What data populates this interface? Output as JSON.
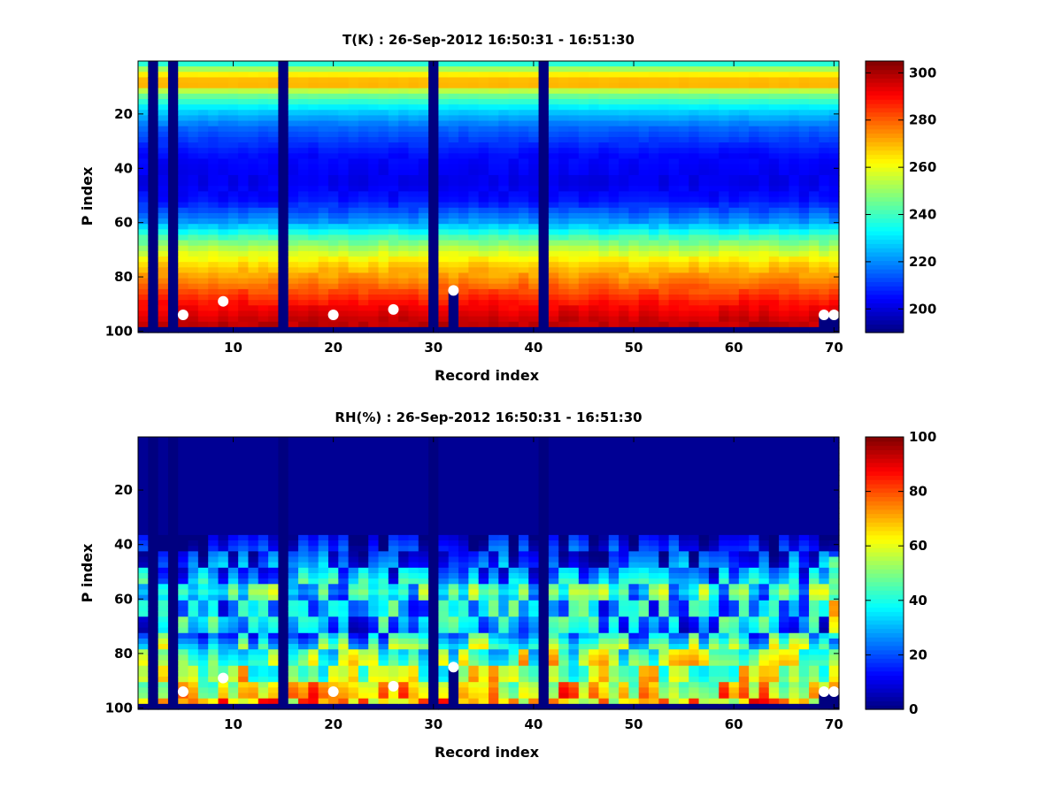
{
  "chart_data": [
    {
      "type": "heatmap",
      "title": "T(K) : 26-Sep-2012 16:50:31 - 16:51:30",
      "xlabel": "Record index",
      "ylabel": "P index",
      "xlim": [
        1,
        70
      ],
      "ylim": [
        100,
        1
      ],
      "y_reversed": true,
      "xticks": [
        10,
        20,
        30,
        40,
        50,
        60,
        70
      ],
      "yticks": [
        20,
        40,
        60,
        80,
        100
      ],
      "colormap": "jet",
      "clim": [
        190,
        305
      ],
      "colorbar_ticks": [
        200,
        220,
        240,
        260,
        280,
        300
      ],
      "missing_records": [
        2,
        4,
        15,
        30,
        41
      ],
      "partial_records": [
        {
          "record": 32,
          "start_p": 85
        },
        {
          "record": 69,
          "start_p": 94
        },
        {
          "record": 70,
          "start_p": 94
        }
      ],
      "bottom_fill_start_p": 98,
      "fill_value": 190,
      "profile_p": [
        1,
        5,
        9,
        12,
        18,
        25,
        35,
        45,
        52,
        60,
        65,
        70,
        75,
        80,
        85,
        90,
        95,
        98
      ],
      "profile_values": [
        234,
        262,
        274,
        250,
        230,
        216,
        205,
        202,
        206,
        222,
        240,
        254,
        266,
        274,
        282,
        290,
        296,
        298
      ],
      "markers": [
        {
          "record": 5,
          "p": 94
        },
        {
          "record": 9,
          "p": 89
        },
        {
          "record": 20,
          "p": 94
        },
        {
          "record": 26,
          "p": 92
        },
        {
          "record": 32,
          "p": 85
        },
        {
          "record": 69,
          "p": 94
        },
        {
          "record": 70,
          "p": 94
        }
      ]
    },
    {
      "type": "heatmap",
      "title": "RH(%) : 26-Sep-2012 16:50:31 - 16:51:30",
      "xlabel": "Record index",
      "ylabel": "P index",
      "xlim": [
        1,
        70
      ],
      "ylim": [
        100,
        1
      ],
      "y_reversed": true,
      "xticks": [
        10,
        20,
        30,
        40,
        50,
        60,
        70
      ],
      "yticks": [
        20,
        40,
        60,
        80,
        100
      ],
      "colormap": "jet",
      "clim": [
        0,
        100
      ],
      "colorbar_ticks": [
        0,
        20,
        40,
        60,
        80,
        100
      ],
      "missing_records": [
        2,
        4,
        15,
        30,
        41
      ],
      "partial_records": [
        {
          "record": 32,
          "start_p": 85
        },
        {
          "record": 69,
          "start_p": 94
        },
        {
          "record": 70,
          "start_p": 94
        }
      ],
      "bottom_fill_start_p": 98,
      "fill_value": 0,
      "profile_p": [
        1,
        35,
        42,
        48,
        53,
        57,
        62,
        67,
        72,
        78,
        83,
        88,
        93,
        98
      ],
      "profile_values": [
        2,
        3,
        12,
        20,
        28,
        42,
        28,
        30,
        25,
        45,
        55,
        55,
        65,
        70
      ],
      "markers": [
        {
          "record": 5,
          "p": 94
        },
        {
          "record": 9,
          "p": 89
        },
        {
          "record": 20,
          "p": 94
        },
        {
          "record": 26,
          "p": 92
        },
        {
          "record": 32,
          "p": 85
        },
        {
          "record": 69,
          "p": 94
        },
        {
          "record": 70,
          "p": 94
        }
      ]
    }
  ]
}
